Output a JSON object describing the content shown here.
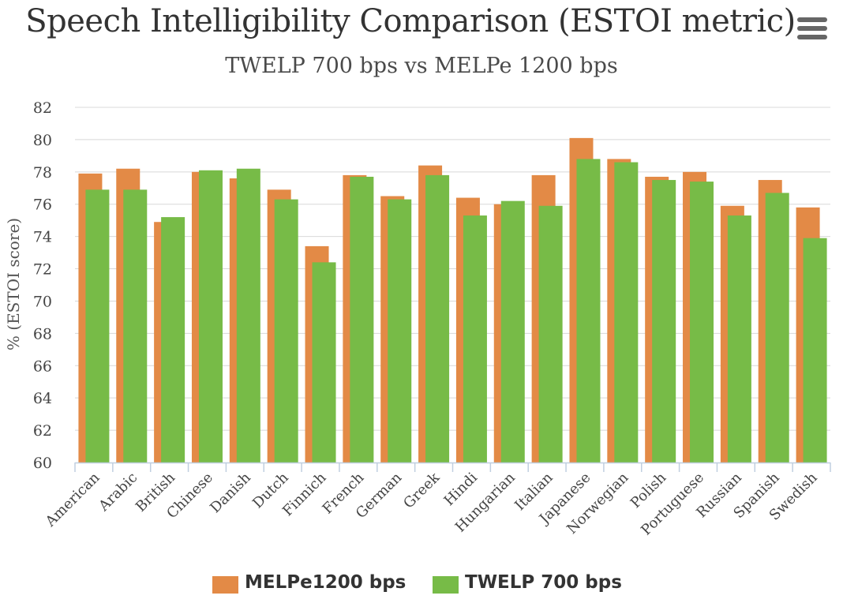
{
  "chart_data": {
    "type": "bar",
    "title": "Speech Intelligibility Comparison (ESTOI metric)",
    "subtitle": "TWELP 700 bps vs MELPe 1200 bps",
    "xlabel": "",
    "ylabel": "% (ESTOI score)",
    "ylim": [
      60,
      82
    ],
    "yticks": [
      60,
      62,
      64,
      66,
      68,
      70,
      72,
      74,
      76,
      78,
      80,
      82
    ],
    "grid": true,
    "legend_position": "bottom-center",
    "categories": [
      "American",
      "Arabic",
      "British",
      "Chinese",
      "Danish",
      "Dutch",
      "Finnich",
      "French",
      "German",
      "Greek",
      "Hindi",
      "Hungarian",
      "Italian",
      "Japanese",
      "Norwegian",
      "Polish",
      "Portuguese",
      "Russian",
      "Spanish",
      "Swedish"
    ],
    "series": [
      {
        "name": "MELPe1200 bps",
        "color": "#E38A46",
        "values": [
          77.9,
          78.2,
          74.9,
          78.0,
          77.6,
          76.9,
          73.4,
          77.8,
          76.5,
          78.4,
          76.4,
          76.0,
          77.8,
          80.1,
          78.8,
          77.7,
          78.0,
          75.9,
          77.5,
          75.8
        ]
      },
      {
        "name": "TWELP 700 bps",
        "color": "#77BB47",
        "values": [
          76.9,
          76.9,
          75.2,
          78.1,
          78.2,
          76.3,
          72.4,
          77.7,
          76.3,
          77.8,
          75.3,
          76.2,
          75.9,
          78.8,
          78.6,
          77.5,
          77.4,
          75.3,
          76.7,
          73.9
        ]
      }
    ]
  },
  "menu": {
    "icon": "hamburger-menu-icon"
  }
}
